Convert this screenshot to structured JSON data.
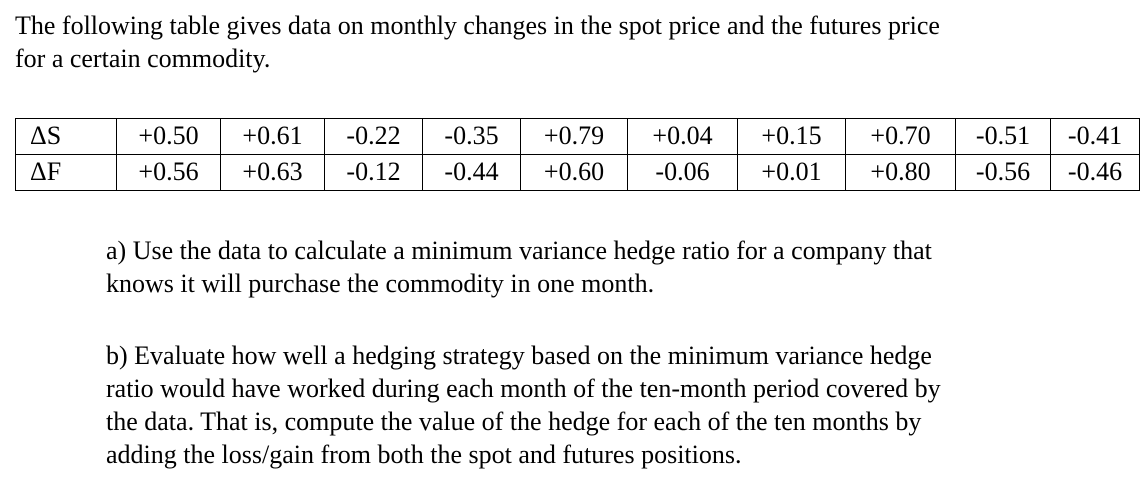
{
  "intro": {
    "line1": "The following table gives data on monthly changes in the spot price and the futures price",
    "line2": "for a certain commodity."
  },
  "table": {
    "rows": [
      {
        "label": "ΔS",
        "values": [
          "+0.50",
          "+0.61",
          "-0.22",
          "-0.35",
          "+0.79",
          "+0.04",
          "+0.15",
          "+0.70",
          "-0.51",
          "-0.41"
        ]
      },
      {
        "label": "ΔF",
        "values": [
          "+0.56",
          "+0.63",
          "-0.12",
          "-0.44",
          "+0.60",
          "-0.06",
          "+0.01",
          "+0.80",
          "-0.56",
          "-0.46"
        ]
      }
    ]
  },
  "questions": {
    "a": {
      "line1": "a) Use the data to calculate a minimum variance hedge ratio for a company that",
      "line2": "knows it will purchase the commodity in one month."
    },
    "b": {
      "line1": "b) Evaluate how well a hedging strategy based on the minimum variance hedge",
      "line2": "ratio would have worked during each month of the ten-month period covered by",
      "line3": "the data. That is, compute the value of the hedge for each of the ten months by",
      "line4": "adding the loss/gain from both the spot and futures positions."
    }
  }
}
